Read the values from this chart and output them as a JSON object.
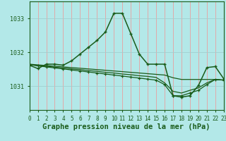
{
  "title": "Graphe pression niveau de la mer (hPa)",
  "background_color": "#b3e8e8",
  "grid_color_v": "#e8a0a0",
  "grid_color_h": "#a0d0d0",
  "line_color": "#1a5c1a",
  "xlim": [
    0,
    23
  ],
  "ylim": [
    1030.3,
    1033.5
  ],
  "yticks": [
    1031,
    1032,
    1033
  ],
  "xticks": [
    0,
    1,
    2,
    3,
    4,
    5,
    6,
    7,
    8,
    9,
    10,
    11,
    12,
    13,
    14,
    15,
    16,
    17,
    18,
    19,
    20,
    21,
    22,
    23
  ],
  "s0_x": [
    0,
    1,
    2,
    3,
    4,
    5,
    6,
    7,
    8,
    9,
    10,
    11,
    12,
    13,
    14,
    15,
    16,
    17,
    18,
    19,
    20,
    21,
    22,
    23
  ],
  "s0_y": [
    1031.62,
    1031.52,
    1031.65,
    1031.65,
    1031.62,
    1031.75,
    1031.95,
    1032.15,
    1032.35,
    1032.6,
    1033.15,
    1033.15,
    1032.55,
    1031.95,
    1031.65,
    1031.65,
    1031.65,
    1030.72,
    1030.68,
    1030.72,
    1031.02,
    1031.55,
    1031.58,
    1031.22
  ],
  "s1_x": [
    0,
    1,
    2,
    3,
    4,
    5,
    6,
    7,
    8,
    9,
    10,
    11,
    12,
    13,
    14,
    15,
    16,
    17,
    18,
    19,
    20,
    21,
    22,
    23
  ],
  "s1_y": [
    1031.65,
    1031.63,
    1031.61,
    1031.59,
    1031.57,
    1031.55,
    1031.53,
    1031.51,
    1031.49,
    1031.47,
    1031.45,
    1031.43,
    1031.41,
    1031.39,
    1031.37,
    1031.35,
    1031.33,
    1031.25,
    1031.2,
    1031.2,
    1031.2,
    1031.2,
    1031.2,
    1031.18
  ],
  "s2_x": [
    0,
    1,
    2,
    3,
    4,
    5,
    6,
    7,
    8,
    9,
    10,
    11,
    12,
    13,
    14,
    15,
    16,
    17,
    18,
    19,
    20,
    21,
    22,
    23
  ],
  "s2_y": [
    1031.64,
    1031.6,
    1031.57,
    1031.54,
    1031.51,
    1031.48,
    1031.45,
    1031.42,
    1031.39,
    1031.36,
    1031.33,
    1031.3,
    1031.27,
    1031.24,
    1031.21,
    1031.18,
    1031.05,
    1030.72,
    1030.72,
    1030.8,
    1030.88,
    1031.05,
    1031.2,
    1031.18
  ],
  "s3_x": [
    0,
    1,
    2,
    3,
    4,
    5,
    6,
    7,
    8,
    9,
    10,
    11,
    12,
    13,
    14,
    15,
    16,
    17,
    18,
    19,
    20,
    21,
    22,
    23
  ],
  "s3_y": [
    1031.64,
    1031.61,
    1031.59,
    1031.56,
    1031.54,
    1031.51,
    1031.49,
    1031.46,
    1031.44,
    1031.41,
    1031.39,
    1031.36,
    1031.34,
    1031.31,
    1031.29,
    1031.26,
    1031.1,
    1030.85,
    1030.8,
    1030.88,
    1030.95,
    1031.1,
    1031.2,
    1031.18
  ],
  "title_fontsize": 7.5,
  "tick_fontsize": 5.5
}
